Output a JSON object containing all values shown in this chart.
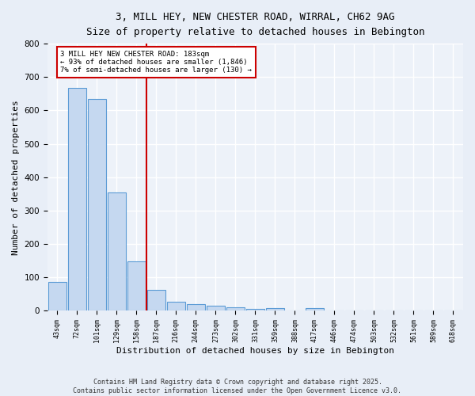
{
  "title_line1": "3, MILL HEY, NEW CHESTER ROAD, WIRRAL, CH62 9AG",
  "title_line2": "Size of property relative to detached houses in Bebington",
  "xlabel": "Distribution of detached houses by size in Bebington",
  "ylabel": "Number of detached properties",
  "categories": [
    "43sqm",
    "72sqm",
    "101sqm",
    "129sqm",
    "158sqm",
    "187sqm",
    "216sqm",
    "244sqm",
    "273sqm",
    "302sqm",
    "331sqm",
    "359sqm",
    "388sqm",
    "417sqm",
    "446sqm",
    "474sqm",
    "503sqm",
    "532sqm",
    "561sqm",
    "589sqm",
    "618sqm"
  ],
  "values": [
    85,
    668,
    633,
    353,
    148,
    62,
    27,
    20,
    15,
    10,
    5,
    7,
    0,
    7,
    0,
    0,
    0,
    0,
    0,
    0,
    0
  ],
  "bar_color": "#c5d8f0",
  "bar_edge_color": "#5b9bd5",
  "annotation_line1": "3 MILL HEY NEW CHESTER ROAD: 183sqm",
  "annotation_line2": "← 93% of detached houses are smaller (1,846)",
  "annotation_line3": "7% of semi-detached houses are larger (130) →",
  "annotation_box_color": "#ffffff",
  "annotation_box_edge": "#cc0000",
  "ylim": [
    0,
    800
  ],
  "yticks": [
    0,
    100,
    200,
    300,
    400,
    500,
    600,
    700,
    800
  ],
  "bg_color": "#e8eef7",
  "plot_bg_color": "#edf2f9",
  "grid_color": "#ffffff",
  "footer_line1": "Contains HM Land Registry data © Crown copyright and database right 2025.",
  "footer_line2": "Contains public sector information licensed under the Open Government Licence v3.0."
}
